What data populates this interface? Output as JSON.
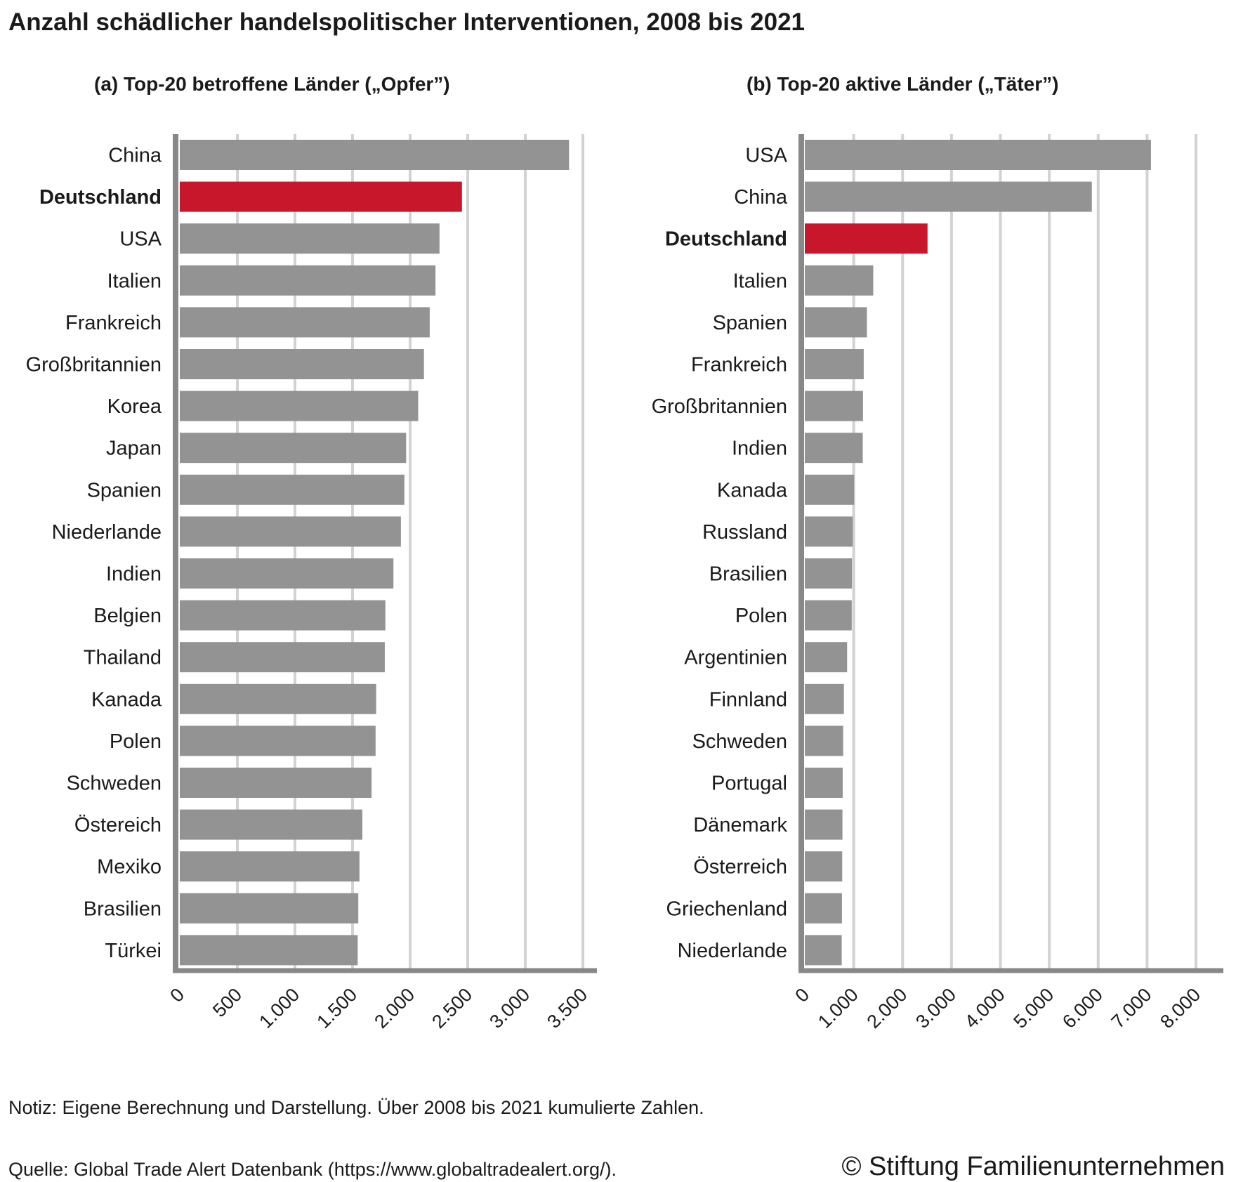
{
  "title": "Anzahl schädlicher handelspolitischer Interventionen, 2008 bis 2021",
  "note": "Notiz: Eigene Berechnung und Darstellung. Über 2008 bis 2021 kumulierte Zahlen.",
  "source": "Quelle: Global Trade Alert Datenbank (https://www.globaltradealert.org/).",
  "copyright": "© Stiftung Familienunternehmen",
  "colors": {
    "bar": "#939393",
    "highlight": "#c8172b",
    "grid": "#d2d2d2",
    "axis": "#888888"
  },
  "chart_data": [
    {
      "type": "bar",
      "orientation": "horizontal",
      "title": "(a) Top-20 betroffene Länder („Opfer”)",
      "highlight": "Deutschland",
      "categories": [
        "China",
        "Deutschland",
        "USA",
        "Italien",
        "Frankreich",
        "Großbritannien",
        "Korea",
        "Japan",
        "Spanien",
        "Niederlande",
        "Indien",
        "Belgien",
        "Thailand",
        "Kanada",
        "Polen",
        "Schweden",
        "Östereich",
        "Mexiko",
        "Brasilien",
        "Türkei"
      ],
      "values": [
        3380,
        2450,
        2255,
        2220,
        2170,
        2120,
        2070,
        1965,
        1950,
        1920,
        1855,
        1785,
        1780,
        1705,
        1700,
        1665,
        1585,
        1560,
        1550,
        1545
      ],
      "xlim": [
        0,
        3500
      ],
      "ticks": [
        0,
        500,
        1000,
        1500,
        2000,
        2500,
        3000,
        3500
      ],
      "tick_labels": [
        "0",
        "500",
        "1.000",
        "1.500",
        "2.000",
        "2.500",
        "3.000",
        "3.500"
      ],
      "grid": true
    },
    {
      "type": "bar",
      "orientation": "horizontal",
      "title": "(b) Top-20 aktive Länder („Täter”)",
      "highlight": "Deutschland",
      "categories": [
        "USA",
        "China",
        "Deutschland",
        "Italien",
        "Spanien",
        "Frankreich",
        "Großbritannien",
        "Indien",
        "Kanada",
        "Russland",
        "Brasilien",
        "Polen",
        "Argentinien",
        "Finnland",
        "Schweden",
        "Portugal",
        "Dänemark",
        "Österreich",
        "Griechenland",
        "Niederlande"
      ],
      "values": [
        7080,
        5870,
        2510,
        1400,
        1270,
        1205,
        1190,
        1185,
        1010,
        980,
        965,
        960,
        865,
        800,
        785,
        775,
        770,
        765,
        760,
        755
      ],
      "xlim": [
        0,
        8000
      ],
      "ticks": [
        0,
        1000,
        2000,
        3000,
        4000,
        5000,
        6000,
        7000,
        8000
      ],
      "tick_labels": [
        "0",
        "1.000",
        "2.000",
        "3.000",
        "4.000",
        "5.000",
        "6.000",
        "7.000",
        "8.000"
      ],
      "grid": true
    }
  ]
}
